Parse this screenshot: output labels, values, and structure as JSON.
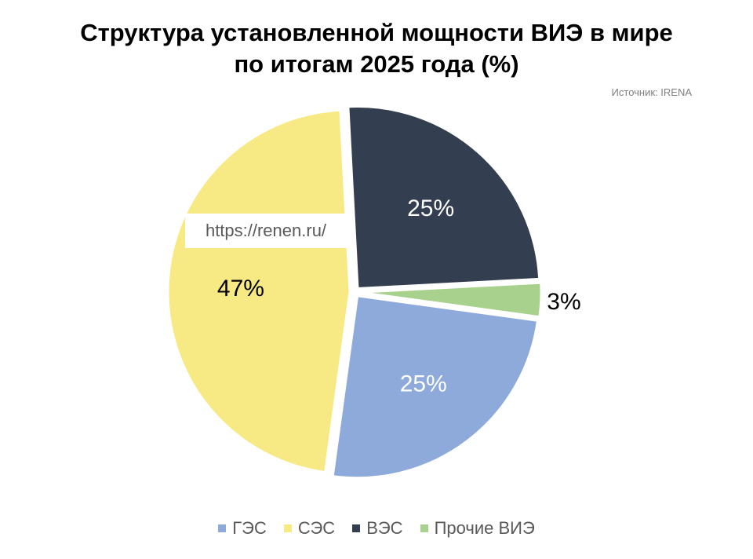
{
  "title_line1": "Структура установленной мощности ВИЭ в мире",
  "title_line2": "по итогам 2025 года (%)",
  "source": "Источник: IRENA",
  "watermark": "https://renen.ru/",
  "chart_data": {
    "type": "pie",
    "title": "Структура установленной мощности ВИЭ в мире по итогам 2025 года (%)",
    "categories": [
      "ГЭС",
      "СЭС",
      "ВЭС",
      "Прочие ВИЭ"
    ],
    "values": [
      25,
      47,
      25,
      3
    ],
    "labels": [
      "25%",
      "47%",
      "25%",
      "3%"
    ],
    "colors": [
      "#8EAADB",
      "#F7E983",
      "#333F50",
      "#A9D18E"
    ],
    "label_colors": [
      "#ffffff",
      "#000000",
      "#ffffff",
      "#000000"
    ],
    "legend_position": "bottom"
  }
}
